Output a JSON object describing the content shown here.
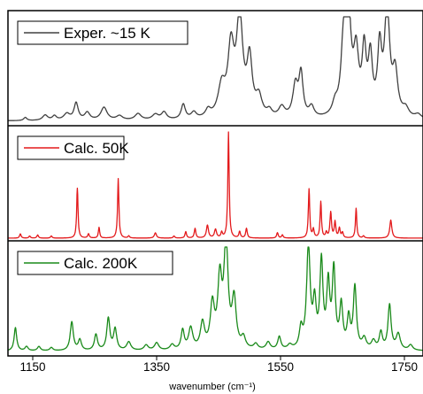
{
  "chart_data": {
    "type": "line",
    "x_range": [
      1110,
      1780
    ],
    "x_ticks": [
      1150,
      1350,
      1550,
      1750
    ],
    "tick_labels": [
      "1150",
      "1350",
      "1550",
      "1750"
    ],
    "xlabel": "wavenumber (cm⁻¹)",
    "ylabel": "",
    "grid": false,
    "layout": "three vertically stacked panels sharing the x axis, legend at top-left of each panel",
    "series": [
      {
        "name": "Exper. ~15 K",
        "color": "#404040",
        "legend_label": "Exper. ~15 K",
        "baseline": 0.02,
        "peaks": [
          [
            1138,
            0.03,
            3
          ],
          [
            1170,
            0.05,
            5
          ],
          [
            1185,
            0.04,
            4
          ],
          [
            1205,
            0.06,
            6
          ],
          [
            1220,
            0.16,
            4
          ],
          [
            1238,
            0.07,
            5
          ],
          [
            1265,
            0.12,
            6
          ],
          [
            1290,
            0.04,
            6
          ],
          [
            1320,
            0.06,
            6
          ],
          [
            1348,
            0.05,
            6
          ],
          [
            1362,
            0.07,
            5
          ],
          [
            1393,
            0.14,
            4
          ],
          [
            1410,
            0.06,
            5
          ],
          [
            1433,
            0.07,
            5
          ],
          [
            1455,
            0.28,
            7
          ],
          [
            1470,
            0.62,
            6
          ],
          [
            1484,
            0.92,
            6
          ],
          [
            1500,
            0.52,
            5
          ],
          [
            1515,
            0.18,
            6
          ],
          [
            1532,
            0.06,
            5
          ],
          [
            1552,
            0.1,
            6
          ],
          [
            1574,
            0.3,
            5
          ],
          [
            1583,
            0.4,
            4
          ],
          [
            1600,
            0.1,
            5
          ],
          [
            1638,
            0.1,
            5
          ],
          [
            1652,
            0.68,
            5
          ],
          [
            1660,
            0.84,
            5
          ],
          [
            1672,
            0.55,
            5
          ],
          [
            1685,
            0.58,
            4
          ],
          [
            1695,
            0.52,
            4
          ],
          [
            1710,
            0.6,
            4
          ],
          [
            1722,
            1.0,
            5
          ],
          [
            1735,
            0.4,
            5
          ],
          [
            1752,
            0.08,
            6
          ],
          [
            1772,
            0.04,
            6
          ]
        ]
      },
      {
        "name": "Calc. 50K",
        "color": "#e31a1c",
        "legend_label": "Calc. 50K",
        "baseline": 0.0,
        "peaks": [
          [
            1130,
            0.04,
            1.5
          ],
          [
            1145,
            0.02,
            1.5
          ],
          [
            1158,
            0.03,
            1.5
          ],
          [
            1180,
            0.02,
            1.5
          ],
          [
            1222,
            0.47,
            1.3
          ],
          [
            1240,
            0.04,
            1.5
          ],
          [
            1257,
            0.1,
            1.3
          ],
          [
            1288,
            0.56,
            1.3
          ],
          [
            1305,
            0.02,
            1.5
          ],
          [
            1348,
            0.05,
            2
          ],
          [
            1378,
            0.02,
            1.5
          ],
          [
            1397,
            0.06,
            1.5
          ],
          [
            1412,
            0.09,
            1.5
          ],
          [
            1432,
            0.12,
            2
          ],
          [
            1445,
            0.08,
            2
          ],
          [
            1455,
            0.05,
            1.5
          ],
          [
            1466,
            1.0,
            1.3
          ],
          [
            1484,
            0.06,
            1.5
          ],
          [
            1495,
            0.09,
            1.5
          ],
          [
            1545,
            0.05,
            1.5
          ],
          [
            1553,
            0.03,
            1.5
          ],
          [
            1596,
            0.46,
            1.3
          ],
          [
            1603,
            0.08,
            1.5
          ],
          [
            1615,
            0.34,
            1.3
          ],
          [
            1624,
            0.05,
            1.5
          ],
          [
            1631,
            0.24,
            1.5
          ],
          [
            1638,
            0.15,
            1.5
          ],
          [
            1645,
            0.09,
            1.5
          ],
          [
            1650,
            0.05,
            1.5
          ],
          [
            1672,
            0.28,
            1.3
          ],
          [
            1684,
            0.02,
            1.5
          ],
          [
            1728,
            0.17,
            2
          ]
        ]
      },
      {
        "name": "Calc. 200K",
        "color": "#1a8a1a",
        "legend_label": "Calc. 200K",
        "baseline": 0.02,
        "peaks": [
          [
            1122,
            0.22,
            2.5
          ],
          [
            1140,
            0.04,
            3
          ],
          [
            1160,
            0.04,
            3
          ],
          [
            1180,
            0.03,
            3
          ],
          [
            1213,
            0.27,
            3
          ],
          [
            1226,
            0.1,
            3
          ],
          [
            1252,
            0.15,
            3
          ],
          [
            1272,
            0.3,
            3
          ],
          [
            1283,
            0.2,
            3
          ],
          [
            1305,
            0.08,
            4
          ],
          [
            1333,
            0.05,
            4
          ],
          [
            1350,
            0.07,
            4
          ],
          [
            1375,
            0.05,
            4
          ],
          [
            1392,
            0.18,
            3
          ],
          [
            1405,
            0.2,
            4
          ],
          [
            1424,
            0.24,
            4
          ],
          [
            1440,
            0.4,
            4
          ],
          [
            1452,
            0.62,
            4
          ],
          [
            1462,
            0.98,
            4
          ],
          [
            1475,
            0.45,
            4
          ],
          [
            1490,
            0.1,
            4
          ],
          [
            1510,
            0.05,
            4
          ],
          [
            1530,
            0.07,
            4
          ],
          [
            1548,
            0.12,
            3
          ],
          [
            1565,
            0.04,
            4
          ],
          [
            1583,
            0.18,
            3
          ],
          [
            1595,
            0.95,
            3.5
          ],
          [
            1605,
            0.4,
            3
          ],
          [
            1616,
            0.8,
            3
          ],
          [
            1627,
            0.58,
            3
          ],
          [
            1636,
            0.72,
            3
          ],
          [
            1648,
            0.4,
            3
          ],
          [
            1660,
            0.28,
            3
          ],
          [
            1670,
            0.58,
            3
          ],
          [
            1685,
            0.1,
            4
          ],
          [
            1700,
            0.08,
            4
          ],
          [
            1712,
            0.16,
            3
          ],
          [
            1726,
            0.42,
            3
          ],
          [
            1740,
            0.15,
            4
          ],
          [
            1760,
            0.05,
            4
          ]
        ]
      }
    ]
  }
}
